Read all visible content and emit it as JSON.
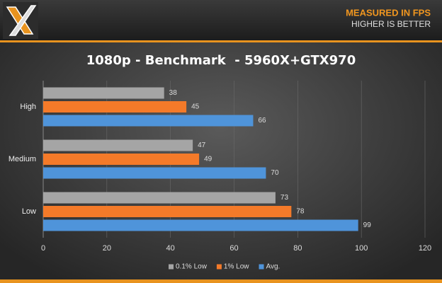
{
  "chart_data": {
    "type": "hbar",
    "title": "1080p - Benchmark  - 5960X+GTX970",
    "annotations": [
      "MEASURED IN FPS",
      "HIGHER IS BETTER"
    ],
    "categories": [
      "High",
      "Medium",
      "Low"
    ],
    "series": [
      {
        "name": "0.1% Low",
        "color": "#a5a5a5",
        "values": [
          38,
          47,
          73
        ]
      },
      {
        "name": "1% Low",
        "color": "#f47a29",
        "values": [
          45,
          49,
          78
        ]
      },
      {
        "name": "Avg.",
        "color": "#4f94da",
        "values": [
          66,
          70,
          99
        ]
      }
    ],
    "xlim": [
      0,
      120
    ],
    "xticks": [
      0,
      20,
      40,
      60,
      80,
      100,
      120
    ],
    "grid": true,
    "legend": "bottom"
  }
}
